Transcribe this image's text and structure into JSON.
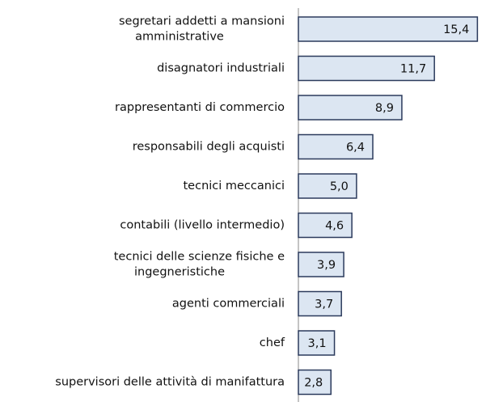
{
  "chart_data": {
    "type": "bar",
    "orientation": "horizontal",
    "categories": [
      "segretari addetti a mansioni\namministrative",
      "disagnatori industriali",
      "rappresentanti di commercio",
      "responsabili degli acquisti",
      "tecnici meccanici",
      "contabili (livello intermedio)",
      "tecnici delle scienze fisiche e\ningegneristiche",
      "agenti commerciali",
      "chef",
      "supervisori delle attività di manifattura"
    ],
    "values": [
      15.4,
      11.7,
      8.9,
      6.4,
      5.0,
      4.6,
      3.9,
      3.7,
      3.1,
      2.8
    ],
    "value_labels": [
      "15,4",
      "11,7",
      "8,9",
      "6,4",
      "5,0",
      "4,6",
      "3,9",
      "3,7",
      "3,1",
      "2,8"
    ],
    "color": "#dce6f2",
    "edge_color": "#2b3a5c",
    "xlim": [
      0,
      16
    ]
  }
}
